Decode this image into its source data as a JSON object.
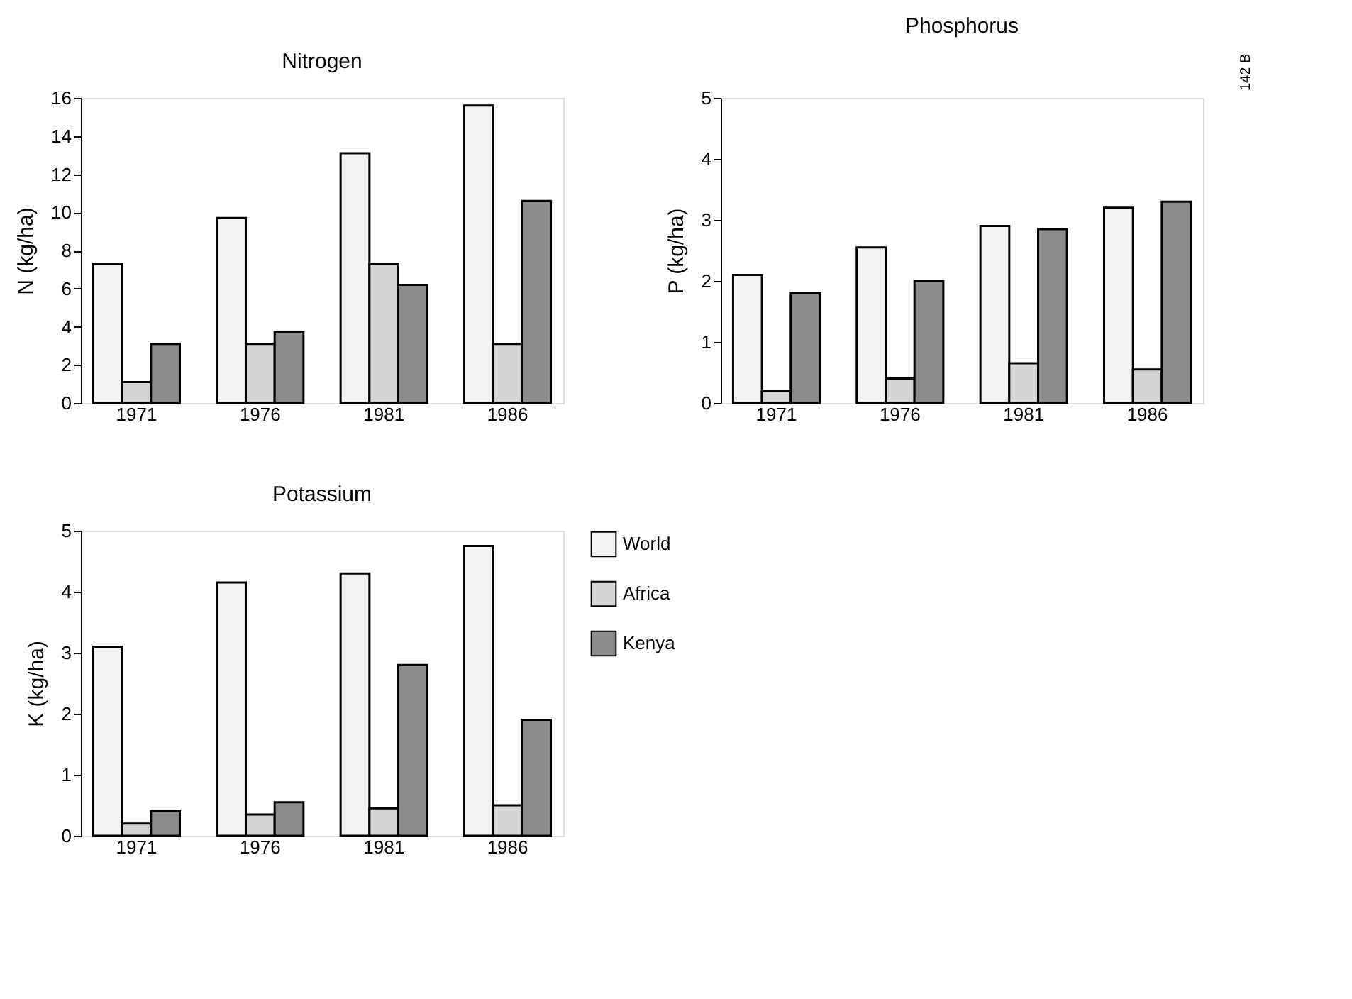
{
  "chart_data": [
    {
      "type": "bar",
      "title": "Nitrogen",
      "ylabel": "N (kg/ha)",
      "categories": [
        "1971",
        "1976",
        "1981",
        "1986"
      ],
      "ylim": [
        0,
        16
      ],
      "yticks": [
        0,
        2,
        4,
        6,
        8,
        10,
        12,
        14,
        16
      ],
      "grid": false,
      "legend": false,
      "series": [
        {
          "color": "#f2f2f2",
          "values": [
            7.3,
            9.7,
            13.1,
            15.6
          ]
        },
        {
          "color": "#d4d4d4",
          "values": [
            1.1,
            3.1,
            7.3,
            3.1
          ]
        },
        {
          "color": "#8c8c8c",
          "values": [
            3.1,
            3.7,
            6.2,
            10.6
          ]
        }
      ]
    },
    {
      "type": "bar",
      "title": "Phosphorus",
      "ylabel": "P (kg/ha)",
      "categories": [
        "1971",
        "1976",
        "1981",
        "1986"
      ],
      "ylim": [
        0,
        5
      ],
      "yticks": [
        0,
        1,
        2,
        3,
        4,
        5
      ],
      "grid": false,
      "legend": false,
      "annotations": [
        "142 B"
      ],
      "series": [
        {
          "color": "#f2f2f2",
          "values": [
            2.1,
            2.55,
            2.9,
            3.2
          ]
        },
        {
          "color": "#d4d4d4",
          "values": [
            0.2,
            0.4,
            0.65,
            0.55
          ]
        },
        {
          "color": "#8c8c8c",
          "values": [
            1.8,
            2.0,
            2.85,
            3.3
          ]
        }
      ]
    },
    {
      "type": "bar",
      "title": "Potassium",
      "ylabel": "K (kg/ha)",
      "categories": [
        "1971",
        "1976",
        "1981",
        "1986"
      ],
      "ylim": [
        0,
        5
      ],
      "yticks": [
        0,
        1,
        2,
        3,
        4,
        5
      ],
      "grid": false,
      "legend": "right",
      "series": [
        {
          "name": "World",
          "color": "#f2f2f2",
          "values": [
            3.1,
            4.15,
            4.3,
            4.75
          ]
        },
        {
          "name": "Africa",
          "color": "#d4d4d4",
          "values": [
            0.2,
            0.35,
            0.45,
            0.5
          ]
        },
        {
          "name": "Kenya",
          "color": "#8c8c8c",
          "values": [
            0.4,
            0.55,
            2.8,
            1.9
          ]
        }
      ]
    }
  ]
}
